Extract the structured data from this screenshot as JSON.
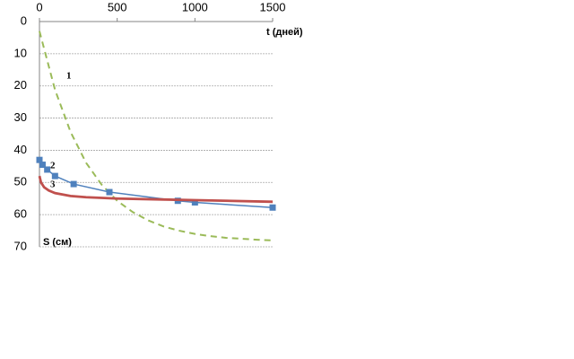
{
  "chart_data": {
    "type": "line",
    "x_label": "t (дней)",
    "y_label": "S (см)",
    "annotations": [
      "1",
      "2",
      "3"
    ],
    "xlim": [
      0,
      1500
    ],
    "xticks": [
      0,
      500,
      1000,
      1500
    ],
    "ylim": [
      0,
      70
    ],
    "yticks": [
      0,
      10,
      20,
      30,
      40,
      50,
      60,
      70
    ],
    "y_inverted": true,
    "x_axis_top": true,
    "grid": true,
    "series": [
      {
        "name": "1",
        "color": "#9bbb59",
        "dashed": true,
        "markers": false,
        "x": [
          0,
          100,
          200,
          300,
          400,
          500,
          600,
          700,
          800,
          900,
          1000,
          1100,
          1200,
          1300,
          1400,
          1500
        ],
        "values": [
          3.0,
          21.2,
          34.3,
          43.9,
          50.7,
          55.7,
          59.2,
          61.8,
          63.7,
          65.0,
          66.0,
          66.7,
          67.2,
          67.5,
          67.8,
          68.0
        ]
      },
      {
        "name": "2",
        "color": "#4f81bd",
        "dashed": false,
        "markers": true,
        "x": [
          0,
          20,
          50,
          100,
          220,
          450,
          890,
          1000,
          1500
        ],
        "values": [
          43,
          44.5,
          46,
          48,
          50.5,
          53,
          55.7,
          56.2,
          57.8
        ]
      },
      {
        "name": "3",
        "color": "#c0504d",
        "dashed": false,
        "markers": false,
        "x": [
          0,
          10,
          30,
          60,
          100,
          200,
          300,
          500,
          800,
          1000,
          1500
        ],
        "values": [
          48,
          50,
          51.5,
          52.5,
          53.3,
          54.2,
          54.6,
          55,
          55.3,
          55.5,
          56
        ]
      }
    ]
  }
}
